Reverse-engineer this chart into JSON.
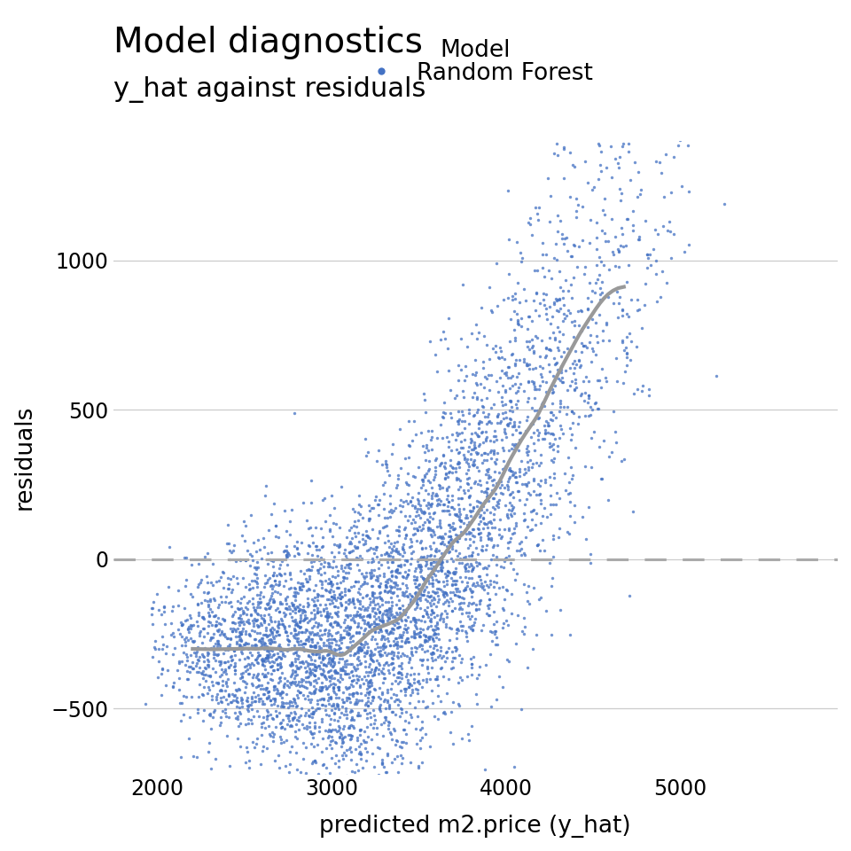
{
  "title": "Model diagnostics",
  "subtitle": "y_hat against residuals",
  "xlabel": "predicted m2.price (y_hat)",
  "ylabel": "residuals",
  "legend_label": "Model",
  "legend_entry": "Random Forest",
  "dot_color": "#4472C4",
  "smooth_color": "#999999",
  "dashed_color": "#aaaaaa",
  "background_color": "#ffffff",
  "xlim": [
    1750,
    5900
  ],
  "ylim": [
    -720,
    1400
  ],
  "yticks": [
    -500,
    0,
    500,
    1000
  ],
  "xticks": [
    2000,
    3000,
    4000,
    5000
  ],
  "n_points": 5000,
  "seed": 42,
  "title_fontsize": 28,
  "subtitle_fontsize": 22,
  "axis_label_fontsize": 19,
  "tick_fontsize": 17,
  "legend_fontsize": 19,
  "dot_size": 6,
  "dot_alpha": 0.75
}
